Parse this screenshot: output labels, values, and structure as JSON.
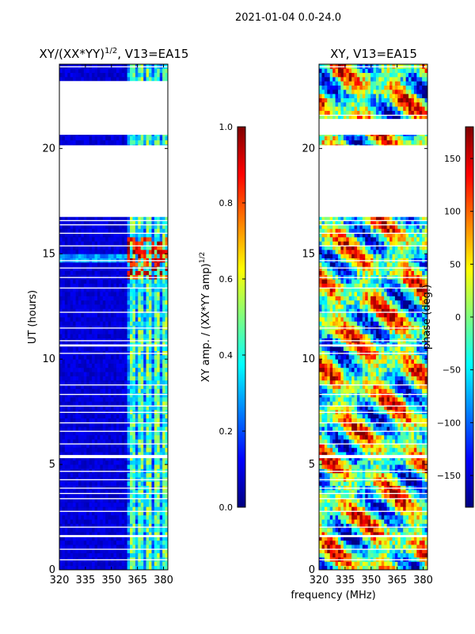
{
  "suptitle": "2021-01-04 0.0-24.0",
  "shared_xlabel": "frequency (MHz)",
  "colormap": [
    "#00007f",
    "#0000ff",
    "#007fff",
    "#00ffff",
    "#7fff7f",
    "#ffff00",
    "#ff7f00",
    "#ff0000",
    "#7f0000"
  ],
  "chart_data": [
    {
      "type": "heatmap",
      "title_main": "XY/(XX*YY)",
      "title_sup": "1/2",
      "title_rest": ", V13=EA15",
      "xlabel": "",
      "ylabel": "UT (hours)",
      "xlim": [
        320,
        382.5
      ],
      "ylim": [
        0,
        24
      ],
      "xticks": [
        320,
        335,
        350,
        365,
        380
      ],
      "yticks": [
        0,
        5,
        10,
        15,
        20
      ],
      "bright_band_mhz": [
        359.5,
        382.5
      ],
      "flagged_hours": [
        [
          20.65,
          23.2
        ],
        [
          16.75,
          20.15
        ],
        [
          21.55,
          21.6
        ],
        [
          23.85,
          23.9
        ],
        [
          16.35,
          16.4
        ],
        [
          16.55,
          16.6
        ],
        [
          15.95,
          16.0
        ],
        [
          15.35,
          15.4
        ],
        [
          14.65,
          14.7
        ],
        [
          14.3,
          14.35
        ],
        [
          13.85,
          13.9
        ],
        [
          13.35,
          13.4
        ],
        [
          12.2,
          12.25
        ],
        [
          11.45,
          11.5
        ],
        [
          10.85,
          10.9
        ],
        [
          10.6,
          10.7
        ],
        [
          10.25,
          10.3
        ],
        [
          8.75,
          8.8
        ],
        [
          8.3,
          8.35
        ],
        [
          7.75,
          7.8
        ],
        [
          7.45,
          7.5
        ],
        [
          6.95,
          7.0
        ],
        [
          6.55,
          6.6
        ],
        [
          5.95,
          6.0
        ],
        [
          5.3,
          5.45
        ],
        [
          4.65,
          4.7
        ],
        [
          4.25,
          4.3
        ],
        [
          3.85,
          3.9
        ],
        [
          3.6,
          3.65
        ],
        [
          3.35,
          3.4
        ],
        [
          2.75,
          2.8
        ],
        [
          2.0,
          2.05
        ],
        [
          1.55,
          1.65
        ],
        [
          0.95,
          1.0
        ],
        [
          0.45,
          0.5
        ]
      ],
      "colorbar": {
        "label_main": "XY amp. / (XX*YY amp)",
        "label_sup": "1/2",
        "min": 0.0,
        "max": 1.0,
        "ticks": [
          "0.0",
          "0.2",
          "0.4",
          "0.6",
          "0.8",
          "1.0"
        ]
      }
    },
    {
      "type": "heatmap",
      "title": "XY, V13=EA15",
      "xlabel": "frequency (MHz)",
      "ylabel": "",
      "xlim": [
        320,
        382.5
      ],
      "ylim": [
        0,
        24
      ],
      "xticks": [
        320,
        335,
        350,
        365,
        380
      ],
      "yticks": [
        0,
        5,
        10,
        15,
        20
      ],
      "flagged_hours": [
        [
          20.65,
          21.4
        ],
        [
          16.75,
          20.15
        ],
        [
          21.55,
          21.6
        ],
        [
          23.85,
          23.9
        ],
        [
          16.35,
          16.4
        ],
        [
          16.55,
          16.6
        ],
        [
          15.95,
          16.0
        ],
        [
          15.35,
          15.4
        ],
        [
          14.65,
          14.7
        ],
        [
          14.3,
          14.35
        ],
        [
          13.85,
          13.9
        ],
        [
          13.35,
          13.4
        ],
        [
          12.2,
          12.25
        ],
        [
          11.45,
          11.5
        ],
        [
          10.85,
          10.9
        ],
        [
          10.6,
          10.7
        ],
        [
          10.25,
          10.3
        ],
        [
          8.75,
          8.8
        ],
        [
          8.3,
          8.35
        ],
        [
          7.75,
          7.8
        ],
        [
          7.45,
          7.5
        ],
        [
          6.95,
          7.0
        ],
        [
          6.55,
          6.6
        ],
        [
          5.95,
          6.0
        ],
        [
          5.3,
          5.45
        ],
        [
          4.65,
          4.7
        ],
        [
          4.25,
          4.3
        ],
        [
          3.85,
          3.9
        ],
        [
          3.6,
          3.65
        ],
        [
          3.35,
          3.4
        ],
        [
          2.75,
          2.8
        ],
        [
          2.0,
          2.05
        ],
        [
          1.55,
          1.65
        ],
        [
          0.95,
          1.0
        ],
        [
          0.45,
          0.5
        ]
      ],
      "colorbar": {
        "label": "phase (deg.)",
        "min": -180,
        "max": 180,
        "ticks": [
          "-150",
          "-100",
          "-50",
          "0",
          "50",
          "100",
          "150"
        ]
      }
    }
  ]
}
